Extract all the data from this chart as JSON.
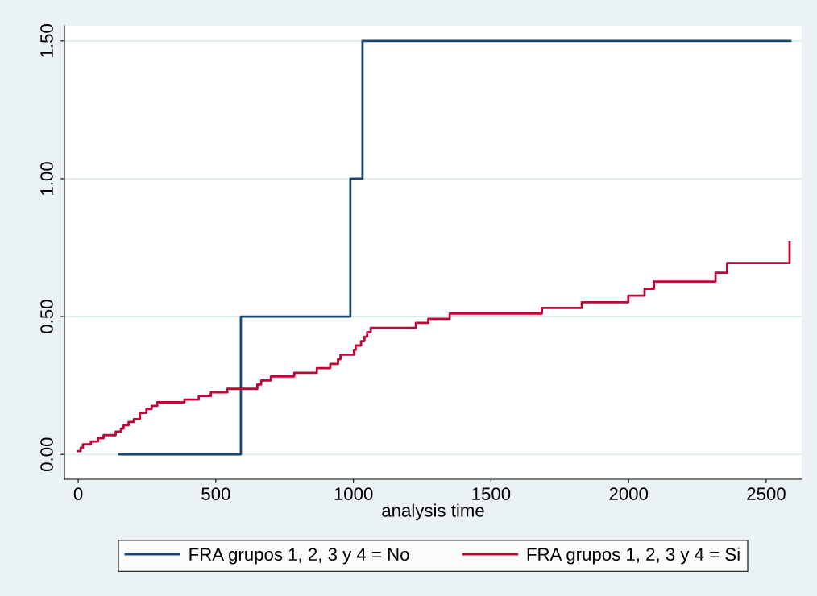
{
  "chart_data": {
    "type": "step",
    "xlabel": "analysis time",
    "xlim": [
      -50,
      2629
    ],
    "ylim": [
      -0.09,
      1.555
    ],
    "xticks": [
      0,
      500,
      1000,
      1500,
      2000,
      2500
    ],
    "yticks": [
      {
        "value": 0,
        "label": "0.00"
      },
      {
        "value": 0.5,
        "label": "0.50"
      },
      {
        "value": 1.0,
        "label": "1.00"
      },
      {
        "value": 1.5,
        "label": "1.50"
      }
    ],
    "grid": "y",
    "legend": "bottom",
    "series": [
      {
        "name": "FRA grupos 1, 2, 3 y 4 = No",
        "color": "#1a476f",
        "x": [
          149,
          591,
          989,
          1033,
          2588
        ],
        "values": [
          0,
          0.5,
          1.0,
          1.5,
          1.5
        ]
      },
      {
        "name": "FRA grupos 1, 2, 3 y 4 = Si",
        "color": "#c10534",
        "x": [
          0,
          9,
          17,
          46,
          72,
          92,
          136,
          155,
          165,
          183,
          202,
          224,
          248,
          267,
          287,
          386,
          438,
          482,
          542,
          651,
          665,
          700,
          785,
          867,
          916,
          944,
          953,
          1002,
          1008,
          1028,
          1040,
          1050,
          1063,
          1227,
          1272,
          1350,
          1685,
          1830,
          1999,
          2058,
          2092,
          2316,
          2358,
          2585
        ],
        "values": [
          0.012,
          0.024,
          0.037,
          0.047,
          0.059,
          0.07,
          0.083,
          0.094,
          0.106,
          0.118,
          0.128,
          0.151,
          0.165,
          0.176,
          0.189,
          0.199,
          0.212,
          0.225,
          0.238,
          0.254,
          0.268,
          0.283,
          0.296,
          0.313,
          0.328,
          0.345,
          0.362,
          0.379,
          0.395,
          0.411,
          0.427,
          0.443,
          0.459,
          0.477,
          0.492,
          0.511,
          0.531,
          0.552,
          0.576,
          0.601,
          0.627,
          0.659,
          0.694,
          0.771
        ]
      }
    ]
  }
}
